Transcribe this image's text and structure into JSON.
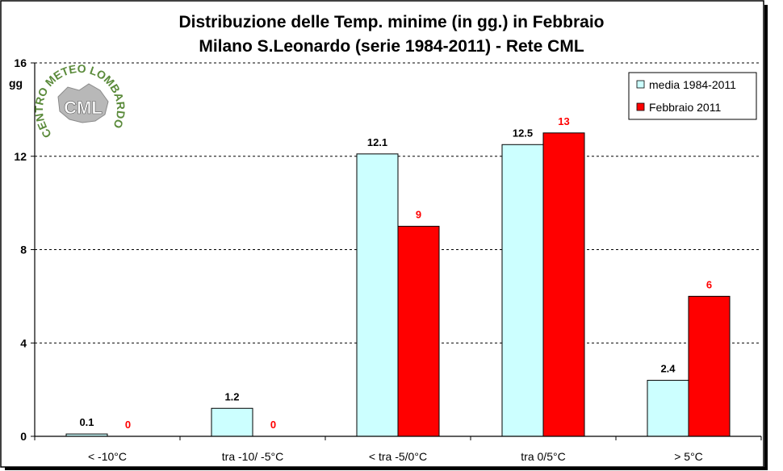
{
  "chart_data": {
    "type": "bar",
    "title": "Distribuzione delle Temp. minime (in gg.) in Febbraio",
    "subtitle": "Milano S.Leonardo (serie 1984-2011) - Rete CML",
    "ylabel": "gg",
    "xlabel": "",
    "ylim": [
      0,
      16
    ],
    "yticks": [
      0,
      4,
      8,
      12,
      16
    ],
    "grid": true,
    "legend_position": "top-right",
    "categories": [
      "< -10°C",
      "tra -10/ -5°C",
      "< tra -5/0°C",
      "tra 0/5°C",
      "> 5°C"
    ],
    "series": [
      {
        "name": "media 1984-2011",
        "color": "#ccffff",
        "label_color": "#000000",
        "values": [
          0.1,
          1.2,
          12.1,
          12.5,
          2.4
        ],
        "labels": [
          "0.1",
          "1.2",
          "12.1",
          "12.5",
          "2.4"
        ]
      },
      {
        "name": "Febbraio 2011",
        "color": "#ff0000",
        "label_color": "#ff0000",
        "values": [
          0,
          0,
          9,
          13,
          6
        ],
        "labels": [
          "0",
          "0",
          "9",
          "13",
          "6"
        ]
      }
    ]
  },
  "logo": {
    "arc_text": "CENTRO METEO LOMBARDO",
    "center_text": "CML",
    "color": "#5a8a3a"
  }
}
